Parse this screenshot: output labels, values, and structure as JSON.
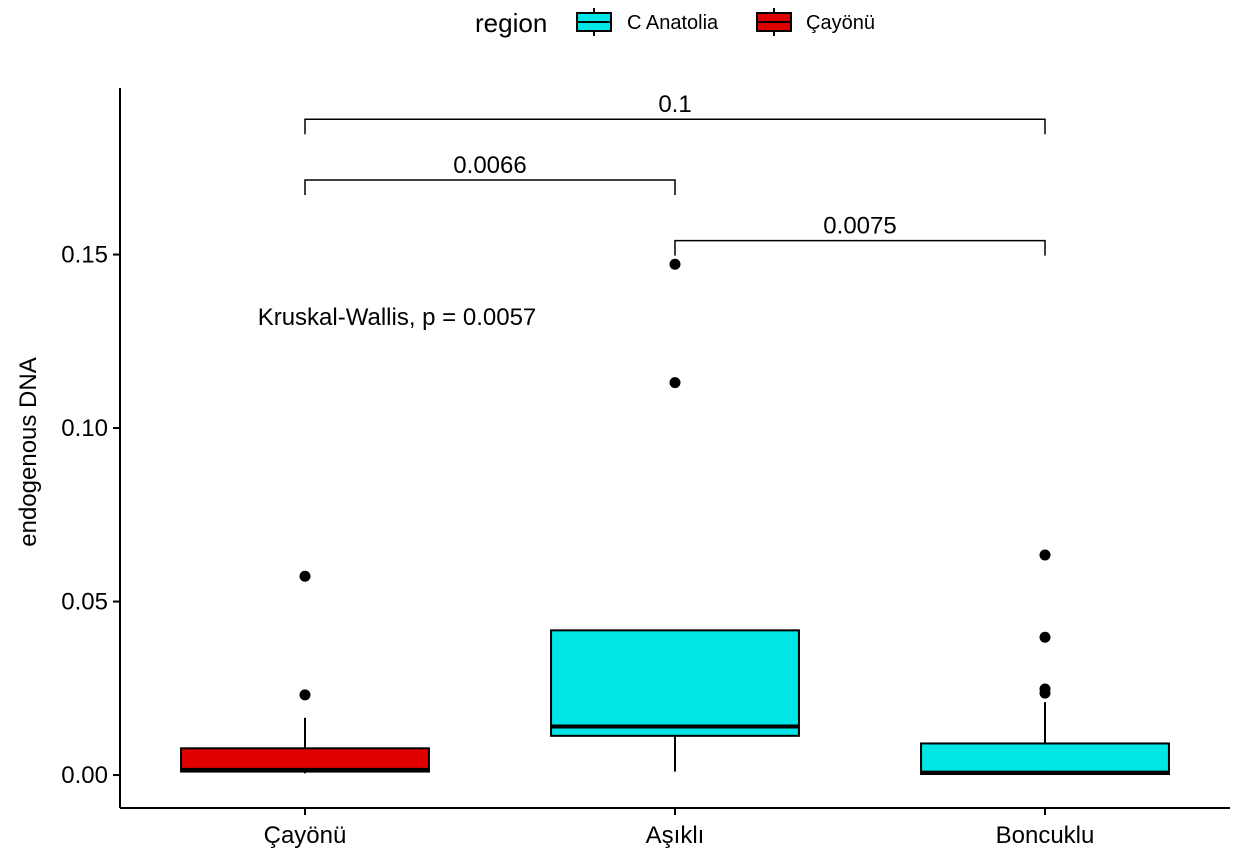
{
  "chart_data": {
    "type": "box",
    "title": "",
    "xlabel": "",
    "ylabel": "endogenous DNA",
    "ylim": [
      -0.0095,
      0.198
    ],
    "yticks": [
      0.0,
      0.05,
      0.1,
      0.15
    ],
    "ytick_labels": [
      "0.00",
      "0.05",
      "0.10",
      "0.15"
    ],
    "categories": [
      "Çayönü",
      "Aşıklı",
      "Boncuklu"
    ],
    "legend": {
      "title": "region",
      "position": "top",
      "entries": [
        {
          "name": "C Anatolia",
          "color": "#00E5E5"
        },
        {
          "name": "Çayönü",
          "color": "#E00000"
        }
      ]
    },
    "boxes": [
      {
        "category": "Çayönü",
        "region": "Çayönü",
        "min": 0.0005,
        "q1": 0.001,
        "median": 0.0015,
        "q3": 0.0077,
        "max": 0.0165,
        "outliers": [
          0.0231,
          0.0573
        ]
      },
      {
        "category": "Aşıklı",
        "region": "C Anatolia",
        "min": 0.001,
        "q1": 0.0113,
        "median": 0.014,
        "q3": 0.0417,
        "max": 0.0417,
        "outliers": [
          0.1131,
          0.1472
        ]
      },
      {
        "category": "Boncuklu",
        "region": "C Anatolia",
        "min": 0.0,
        "q1": 0.0003,
        "median": 0.0007,
        "q3": 0.0091,
        "max": 0.021,
        "outliers": [
          0.0236,
          0.0248,
          0.0397,
          0.0634
        ]
      }
    ],
    "annotations": [
      {
        "text": "Kruskal-Wallis, p = 0.0057",
        "x_category": "Çayönü",
        "y": 0.132
      }
    ],
    "comparisons": [
      {
        "from": "Çayönü",
        "to": "Boncuklu",
        "label": "0.1",
        "y": 0.189
      },
      {
        "from": "Çayönü",
        "to": "Aşıklı",
        "label": "0.0066",
        "y": 0.1715
      },
      {
        "from": "Aşıklı",
        "to": "Boncuklu",
        "label": "0.0075",
        "y": 0.154
      }
    ],
    "grid": false
  }
}
